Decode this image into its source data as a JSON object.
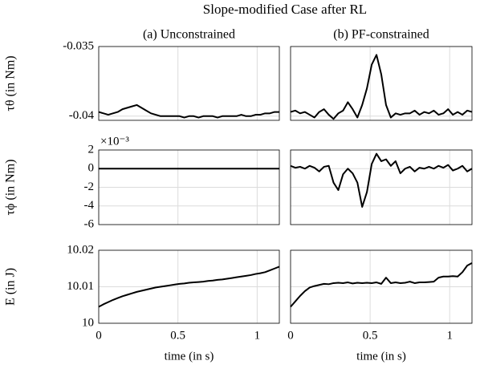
{
  "title": "Slope-modified Case after RL",
  "chart_data": [
    {
      "type": "line",
      "subtitle": "(a) Unconstrained",
      "ylabel": "τθ (in Nm)",
      "xlim": [
        0,
        1.14
      ],
      "xticks": [
        0,
        0.5,
        1
      ],
      "ylim": [
        -0.0403,
        -0.035
      ],
      "yticks": [
        -0.04,
        -0.035
      ],
      "grid": true,
      "x": [
        0,
        0.03,
        0.06,
        0.09,
        0.12,
        0.15,
        0.18,
        0.21,
        0.24,
        0.27,
        0.3,
        0.33,
        0.36,
        0.39,
        0.42,
        0.45,
        0.48,
        0.51,
        0.54,
        0.57,
        0.6,
        0.63,
        0.66,
        0.69,
        0.72,
        0.75,
        0.78,
        0.81,
        0.84,
        0.87,
        0.9,
        0.93,
        0.96,
        0.99,
        1.02,
        1.05,
        1.08,
        1.11,
        1.14
      ],
      "series": [
        {
          "color": "#000000",
          "values": [
            -0.0397,
            -0.0398,
            -0.0399,
            -0.0398,
            -0.0397,
            -0.0395,
            -0.0394,
            -0.0393,
            -0.0392,
            -0.0394,
            -0.0396,
            -0.0398,
            -0.0399,
            -0.04,
            -0.04,
            -0.04,
            -0.04,
            -0.04,
            -0.0401,
            -0.04,
            -0.04,
            -0.0401,
            -0.04,
            -0.04,
            -0.04,
            -0.0401,
            -0.04,
            -0.04,
            -0.04,
            -0.04,
            -0.0399,
            -0.04,
            -0.04,
            -0.0399,
            -0.0399,
            -0.0398,
            -0.0398,
            -0.0397,
            -0.0397
          ]
        }
      ]
    },
    {
      "type": "line",
      "subtitle": "(b) PF-constrained",
      "xlim": [
        0,
        1.14
      ],
      "xticks": [
        0,
        0.5,
        1
      ],
      "ylim": [
        -0.0403,
        -0.035
      ],
      "grid": true,
      "x": [
        0,
        0.03,
        0.06,
        0.09,
        0.12,
        0.15,
        0.18,
        0.21,
        0.24,
        0.27,
        0.3,
        0.33,
        0.36,
        0.39,
        0.42,
        0.45,
        0.48,
        0.51,
        0.54,
        0.57,
        0.6,
        0.63,
        0.66,
        0.69,
        0.72,
        0.75,
        0.78,
        0.81,
        0.84,
        0.87,
        0.9,
        0.93,
        0.96,
        0.99,
        1.02,
        1.05,
        1.08,
        1.11,
        1.14
      ],
      "series": [
        {
          "color": "#000000",
          "values": [
            -0.0397,
            -0.0396,
            -0.0398,
            -0.0397,
            -0.0399,
            -0.0401,
            -0.0397,
            -0.0395,
            -0.0399,
            -0.0402,
            -0.0398,
            -0.0396,
            -0.039,
            -0.0395,
            -0.0401,
            -0.0392,
            -0.038,
            -0.0363,
            -0.0356,
            -0.037,
            -0.0392,
            -0.0401,
            -0.0398,
            -0.0399,
            -0.0398,
            -0.0398,
            -0.0396,
            -0.0399,
            -0.0397,
            -0.0398,
            -0.0396,
            -0.0399,
            -0.0398,
            -0.0395,
            -0.0399,
            -0.0397,
            -0.0399,
            -0.0396,
            -0.0397
          ]
        }
      ]
    },
    {
      "type": "line",
      "ylabel": "τϕ (in Nm)",
      "y_multiplier": "×10⁻³",
      "xlim": [
        0,
        1.14
      ],
      "xticks": [
        0,
        0.5,
        1
      ],
      "ylim": [
        -6,
        2
      ],
      "yticks": [
        -6,
        -4,
        -2,
        0,
        2
      ],
      "grid": true,
      "x": [
        0,
        0.03,
        0.06,
        0.09,
        0.12,
        0.15,
        0.18,
        0.21,
        0.24,
        0.27,
        0.3,
        0.33,
        0.36,
        0.39,
        0.42,
        0.45,
        0.48,
        0.51,
        0.54,
        0.57,
        0.6,
        0.63,
        0.66,
        0.69,
        0.72,
        0.75,
        0.78,
        0.81,
        0.84,
        0.87,
        0.9,
        0.93,
        0.96,
        0.99,
        1.02,
        1.05,
        1.08,
        1.11,
        1.14
      ],
      "series": [
        {
          "color": "#000000",
          "values": [
            0,
            0,
            0,
            0,
            0,
            0,
            0,
            0,
            0,
            0,
            0,
            0,
            0,
            0,
            0,
            0,
            0,
            0,
            0,
            0,
            0,
            0,
            0,
            0,
            0,
            0,
            0,
            0,
            0,
            0,
            0,
            0,
            0,
            0,
            0,
            0,
            0,
            0,
            0
          ]
        }
      ]
    },
    {
      "type": "line",
      "xlim": [
        0,
        1.14
      ],
      "xticks": [
        0,
        0.5,
        1
      ],
      "ylim": [
        -6,
        2
      ],
      "grid": true,
      "x": [
        0,
        0.03,
        0.06,
        0.09,
        0.12,
        0.15,
        0.18,
        0.21,
        0.24,
        0.27,
        0.3,
        0.33,
        0.36,
        0.39,
        0.42,
        0.45,
        0.48,
        0.51,
        0.54,
        0.57,
        0.6,
        0.63,
        0.66,
        0.69,
        0.72,
        0.75,
        0.78,
        0.81,
        0.84,
        0.87,
        0.9,
        0.93,
        0.96,
        0.99,
        1.02,
        1.05,
        1.08,
        1.11,
        1.14
      ],
      "series": [
        {
          "color": "#000000",
          "values": [
            0.3,
            0.1,
            0.2,
            0,
            0.3,
            0.1,
            -0.3,
            0.2,
            0.3,
            -1.5,
            -2.3,
            -0.6,
            0,
            -0.5,
            -1.5,
            -4.1,
            -2.5,
            0.5,
            1.6,
            0.8,
            1,
            0.3,
            0.8,
            -0.5,
            0,
            0.2,
            -0.3,
            0.1,
            0,
            0.2,
            0,
            0.3,
            0.1,
            0.4,
            -0.2,
            0,
            0.3,
            -0.3,
            0
          ]
        }
      ]
    },
    {
      "type": "line",
      "ylabel": "E (in J)",
      "xlabel": "time (in s)",
      "xlim": [
        0,
        1.14
      ],
      "xticks": [
        0,
        0.5,
        1
      ],
      "ylim": [
        10,
        10.02
      ],
      "yticks": [
        10,
        10.01,
        10.02
      ],
      "grid": true,
      "x": [
        0,
        0.03,
        0.06,
        0.09,
        0.12,
        0.15,
        0.18,
        0.21,
        0.24,
        0.27,
        0.3,
        0.33,
        0.36,
        0.39,
        0.42,
        0.45,
        0.48,
        0.51,
        0.54,
        0.57,
        0.6,
        0.63,
        0.66,
        0.69,
        0.72,
        0.75,
        0.78,
        0.81,
        0.84,
        0.87,
        0.9,
        0.93,
        0.96,
        0.99,
        1.02,
        1.05,
        1.08,
        1.11,
        1.14
      ],
      "series": [
        {
          "color": "#000000",
          "values": [
            10.0045,
            10.0052,
            10.0058,
            10.0064,
            10.0069,
            10.0074,
            10.0078,
            10.0082,
            10.0086,
            10.0089,
            10.0092,
            10.0095,
            10.0098,
            10.01,
            10.0102,
            10.0104,
            10.0106,
            10.0108,
            10.0109,
            10.0111,
            10.0112,
            10.0113,
            10.0114,
            10.0116,
            10.0117,
            10.0119,
            10.012,
            10.0122,
            10.0124,
            10.0126,
            10.0128,
            10.013,
            10.0132,
            10.0135,
            10.0137,
            10.014,
            10.0145,
            10.015,
            10.0155
          ]
        }
      ]
    },
    {
      "type": "line",
      "xlabel": "time (in s)",
      "xlim": [
        0,
        1.14
      ],
      "xticks": [
        0,
        0.5,
        1
      ],
      "ylim": [
        10,
        10.02
      ],
      "grid": true,
      "x": [
        0,
        0.03,
        0.06,
        0.09,
        0.12,
        0.15,
        0.18,
        0.21,
        0.24,
        0.27,
        0.3,
        0.33,
        0.36,
        0.39,
        0.42,
        0.45,
        0.48,
        0.51,
        0.54,
        0.57,
        0.6,
        0.63,
        0.66,
        0.69,
        0.72,
        0.75,
        0.78,
        0.81,
        0.84,
        0.87,
        0.9,
        0.93,
        0.96,
        0.99,
        1.02,
        1.05,
        1.08,
        1.11,
        1.14
      ],
      "series": [
        {
          "color": "#000000",
          "values": [
            10.0045,
            10.006,
            10.0075,
            10.0088,
            10.0098,
            10.0102,
            10.0105,
            10.0108,
            10.0107,
            10.011,
            10.0111,
            10.011,
            10.0112,
            10.0109,
            10.0111,
            10.011,
            10.0111,
            10.011,
            10.0112,
            10.0108,
            10.0125,
            10.011,
            10.0112,
            10.011,
            10.0111,
            10.0114,
            10.011,
            10.0112,
            10.0112,
            10.0113,
            10.0114,
            10.0125,
            10.0128,
            10.0128,
            10.0129,
            10.0128,
            10.014,
            10.0158,
            10.0165
          ]
        }
      ]
    }
  ]
}
